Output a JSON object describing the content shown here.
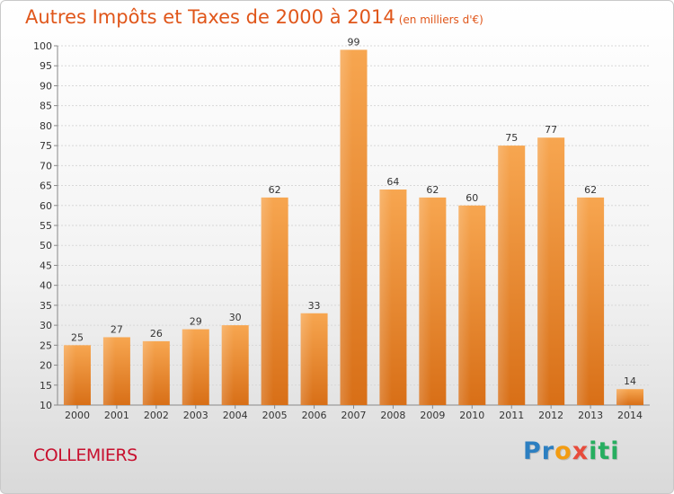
{
  "chart_data": {
    "type": "bar",
    "title": "Autres Impôts et Taxes de 2000 à 2014",
    "subtitle": "(en milliers d'€)",
    "categories": [
      "2000",
      "2001",
      "2002",
      "2003",
      "2004",
      "2005",
      "2006",
      "2007",
      "2008",
      "2009",
      "2010",
      "2011",
      "2012",
      "2013",
      "2014"
    ],
    "values": [
      25,
      27,
      26,
      29,
      30,
      62,
      33,
      99,
      64,
      62,
      60,
      75,
      77,
      62,
      14
    ],
    "ylim": [
      10,
      100
    ],
    "yticks": [
      10,
      15,
      20,
      25,
      30,
      35,
      40,
      45,
      50,
      55,
      60,
      65,
      70,
      75,
      80,
      85,
      90,
      95,
      100
    ],
    "grid": true,
    "bar_color": "#f0923a"
  },
  "footer": {
    "commune": "COLLEMIERS",
    "logo_letters": [
      {
        "ch": "P",
        "color": "#2c7fc1"
      },
      {
        "ch": "r",
        "color": "#2c7fc1"
      },
      {
        "ch": "o",
        "color": "#f39c12"
      },
      {
        "ch": "x",
        "color": "#e74c3c"
      },
      {
        "ch": "i",
        "color": "#27ae60"
      },
      {
        "ch": "t",
        "color": "#27ae60"
      },
      {
        "ch": "i",
        "color": "#27ae60"
      }
    ]
  }
}
